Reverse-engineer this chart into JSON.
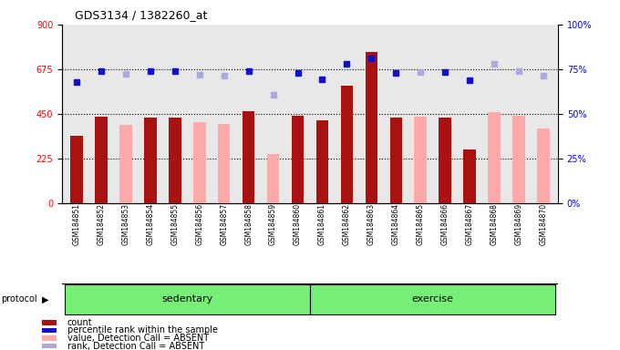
{
  "title": "GDS3134 / 1382260_at",
  "samples": [
    "GSM184851",
    "GSM184852",
    "GSM184853",
    "GSM184854",
    "GSM184855",
    "GSM184856",
    "GSM184857",
    "GSM184858",
    "GSM184859",
    "GSM184860",
    "GSM184861",
    "GSM184862",
    "GSM184863",
    "GSM184864",
    "GSM184865",
    "GSM184866",
    "GSM184867",
    "GSM184868",
    "GSM184869",
    "GSM184870"
  ],
  "count_values": [
    340,
    435,
    null,
    430,
    430,
    null,
    null,
    465,
    null,
    440,
    415,
    590,
    760,
    430,
    null,
    430,
    270,
    null,
    null,
    null
  ],
  "absent_values": [
    null,
    null,
    395,
    null,
    null,
    410,
    400,
    null,
    245,
    null,
    null,
    null,
    null,
    null,
    435,
    null,
    null,
    460,
    440,
    375
  ],
  "rank_values": [
    610,
    665,
    null,
    665,
    665,
    null,
    null,
    665,
    null,
    655,
    625,
    700,
    730,
    655,
    null,
    660,
    620,
    null,
    null,
    null
  ],
  "absent_rank_values": [
    null,
    null,
    650,
    null,
    null,
    645,
    640,
    null,
    545,
    null,
    null,
    null,
    null,
    null,
    660,
    null,
    null,
    700,
    665,
    640
  ],
  "ylim_left": [
    0,
    900
  ],
  "ylim_right": [
    0,
    100
  ],
  "yticks_left": [
    0,
    225,
    450,
    675,
    900
  ],
  "yticks_right": [
    0,
    25,
    50,
    75,
    100
  ],
  "grid_values": [
    225,
    450,
    675
  ],
  "count_color": "#aa1111",
  "absent_bar_color": "#ffaaaa",
  "rank_color": "#1111cc",
  "absent_rank_color": "#aaaadd",
  "protocol_label": "protocol",
  "sedentary_label": "sedentary",
  "exercise_label": "exercise",
  "group_color": "#77ee77",
  "plot_bg_color": "#e8e8e8",
  "sedentary_count": 10,
  "exercise_count": 10,
  "legend_items": [
    {
      "color": "#aa1111",
      "label": "count"
    },
    {
      "color": "#1111cc",
      "label": "percentile rank within the sample"
    },
    {
      "color": "#ffaaaa",
      "label": "value, Detection Call = ABSENT"
    },
    {
      "color": "#aaaadd",
      "label": "rank, Detection Call = ABSENT"
    }
  ]
}
